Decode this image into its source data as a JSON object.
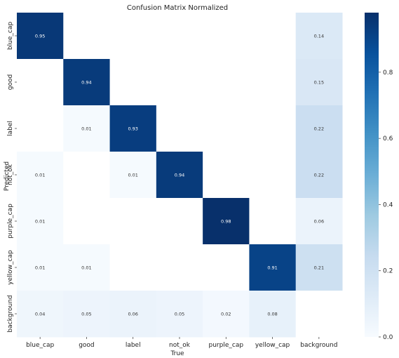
{
  "chart_data": {
    "type": "heatmap",
    "title": "Confusion Matrix Normalized",
    "xlabel": "True",
    "ylabel": "Predicted",
    "x_categories": [
      "blue_cap",
      "good",
      "label",
      "not_ok",
      "purple_cap",
      "yellow_cap",
      "background"
    ],
    "y_categories": [
      "blue_cap",
      "good",
      "label",
      "not_ok",
      "purple_cap",
      "yellow_cap",
      "background"
    ],
    "values": [
      [
        0.95,
        null,
        null,
        null,
        null,
        null,
        0.14
      ],
      [
        null,
        0.94,
        null,
        null,
        null,
        null,
        0.15
      ],
      [
        null,
        0.01,
        0.93,
        null,
        null,
        null,
        0.22
      ],
      [
        0.01,
        null,
        0.01,
        0.94,
        null,
        null,
        0.22
      ],
      [
        0.01,
        null,
        null,
        null,
        0.98,
        null,
        0.06
      ],
      [
        0.01,
        0.01,
        null,
        null,
        null,
        0.91,
        0.21
      ],
      [
        0.04,
        0.05,
        0.06,
        0.05,
        0.02,
        0.08,
        null
      ]
    ],
    "value_labels": [
      [
        "0.95",
        "",
        "",
        "",
        "",
        "",
        "0.14"
      ],
      [
        "",
        "0.94",
        "",
        "",
        "",
        "",
        "0.15"
      ],
      [
        "",
        "0.01",
        "0.93",
        "",
        "",
        "",
        "0.22"
      ],
      [
        "0.01",
        "",
        "0.01",
        "0.94",
        "",
        "",
        "0.22"
      ],
      [
        "0.01",
        "",
        "",
        "",
        "0.98",
        "",
        "0.06"
      ],
      [
        "0.01",
        "0.01",
        "",
        "",
        "",
        "0.91",
        "0.21"
      ],
      [
        "0.04",
        "0.05",
        "0.06",
        "0.05",
        "0.02",
        "0.08",
        ""
      ]
    ],
    "colorbar": {
      "range": [
        0,
        0.98
      ],
      "ticks": [
        0.0,
        0.2,
        0.4,
        0.6,
        0.8
      ],
      "tick_labels": [
        "0.0",
        "0.2",
        "0.4",
        "0.6",
        "0.8"
      ],
      "colormap": "Blues",
      "low_color": "#f7fbff",
      "high_color": "#08306b"
    },
    "grid": false
  }
}
